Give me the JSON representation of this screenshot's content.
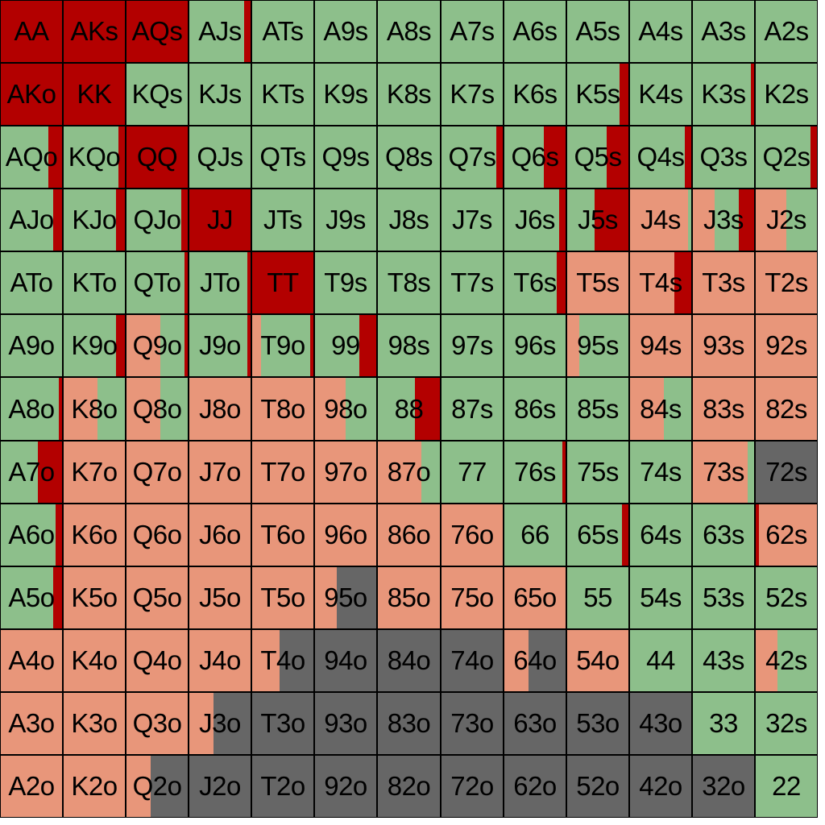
{
  "chart_data": {
    "type": "heatmap",
    "colors": {
      "raise": "#b30000",
      "call": "#8dbf8b",
      "fold": "#e8967a",
      "unused": "#666666"
    },
    "rows": [
      [
        "AA",
        "AKs",
        "AQs",
        "AJs",
        "ATs",
        "A9s",
        "A8s",
        "A7s",
        "A6s",
        "A5s",
        "A4s",
        "A3s",
        "A2s"
      ],
      [
        "AKo",
        "KK",
        "KQs",
        "KJs",
        "KTs",
        "K9s",
        "K8s",
        "K7s",
        "K6s",
        "K5s",
        "K4s",
        "K3s",
        "K2s"
      ],
      [
        "AQo",
        "KQo",
        "QQ",
        "QJs",
        "QTs",
        "Q9s",
        "Q8s",
        "Q7s",
        "Q6s",
        "Q5s",
        "Q4s",
        "Q3s",
        "Q2s"
      ],
      [
        "AJo",
        "KJo",
        "QJo",
        "JJ",
        "JTs",
        "J9s",
        "J8s",
        "J7s",
        "J6s",
        "J5s",
        "J4s",
        "J3s",
        "J2s"
      ],
      [
        "ATo",
        "KTo",
        "QTo",
        "JTo",
        "TT",
        "T9s",
        "T8s",
        "T7s",
        "T6s",
        "T5s",
        "T4s",
        "T3s",
        "T2s"
      ],
      [
        "A9o",
        "K9o",
        "Q9o",
        "J9o",
        "T9o",
        "99",
        "98s",
        "97s",
        "96s",
        "95s",
        "94s",
        "93s",
        "92s"
      ],
      [
        "A8o",
        "K8o",
        "Q8o",
        "J8o",
        "T8o",
        "98o",
        "88",
        "87s",
        "86s",
        "85s",
        "84s",
        "83s",
        "82s"
      ],
      [
        "A7o",
        "K7o",
        "Q7o",
        "J7o",
        "T7o",
        "97o",
        "87o",
        "77",
        "76s",
        "75s",
        "74s",
        "73s",
        "72s"
      ],
      [
        "A6o",
        "K6o",
        "Q6o",
        "J6o",
        "T6o",
        "96o",
        "86o",
        "76o",
        "66",
        "65s",
        "64s",
        "63s",
        "62s"
      ],
      [
        "A5o",
        "K5o",
        "Q5o",
        "J5o",
        "T5o",
        "95o",
        "85o",
        "75o",
        "65o",
        "55",
        "54s",
        "53s",
        "52s"
      ],
      [
        "A4o",
        "K4o",
        "Q4o",
        "J4o",
        "T4o",
        "94o",
        "84o",
        "74o",
        "64o",
        "54o",
        "44",
        "43s",
        "42s"
      ],
      [
        "A3o",
        "K3o",
        "Q3o",
        "J3o",
        "T3o",
        "93o",
        "83o",
        "73o",
        "63o",
        "53o",
        "43o",
        "33",
        "32s"
      ],
      [
        "A2o",
        "K2o",
        "Q2o",
        "J2o",
        "T2o",
        "92o",
        "82o",
        "72o",
        "62o",
        "52o",
        "42o",
        "32o",
        "22"
      ]
    ],
    "strategy": [
      [
        [
          [
            "raise",
            1
          ]
        ],
        [
          [
            "raise",
            1
          ]
        ],
        [
          [
            "raise",
            1
          ]
        ],
        [
          [
            "call",
            0.9
          ],
          [
            "raise",
            0.1
          ]
        ],
        [
          [
            "call",
            1
          ]
        ],
        [
          [
            "call",
            1
          ]
        ],
        [
          [
            "call",
            1
          ]
        ],
        [
          [
            "call",
            1
          ]
        ],
        [
          [
            "call",
            1
          ]
        ],
        [
          [
            "call",
            1
          ]
        ],
        [
          [
            "call",
            1
          ]
        ],
        [
          [
            "call",
            1
          ]
        ],
        [
          [
            "call",
            1
          ]
        ]
      ],
      [
        [
          [
            "raise",
            1
          ]
        ],
        [
          [
            "raise",
            1
          ]
        ],
        [
          [
            "call",
            1
          ]
        ],
        [
          [
            "call",
            1
          ]
        ],
        [
          [
            "call",
            1
          ]
        ],
        [
          [
            "call",
            1
          ]
        ],
        [
          [
            "call",
            1
          ]
        ],
        [
          [
            "call",
            1
          ]
        ],
        [
          [
            "call",
            1
          ]
        ],
        [
          [
            "call",
            0.86
          ],
          [
            "raise",
            0.14
          ]
        ],
        [
          [
            "call",
            1
          ]
        ],
        [
          [
            "call",
            0.95
          ],
          [
            "raise",
            0.05
          ]
        ],
        [
          [
            "call",
            1
          ]
        ]
      ],
      [
        [
          [
            "call",
            0.77
          ],
          [
            "raise",
            0.23
          ]
        ],
        [
          [
            "call",
            0.9
          ],
          [
            "raise",
            0.1
          ]
        ],
        [
          [
            "raise",
            1
          ]
        ],
        [
          [
            "call",
            1
          ]
        ],
        [
          [
            "call",
            1
          ]
        ],
        [
          [
            "call",
            1
          ]
        ],
        [
          [
            "call",
            1
          ]
        ],
        [
          [
            "call",
            0.9
          ],
          [
            "raise",
            0.1
          ]
        ],
        [
          [
            "call",
            0.65
          ],
          [
            "raise",
            0.35
          ]
        ],
        [
          [
            "call",
            0.65
          ],
          [
            "raise",
            0.35
          ]
        ],
        [
          [
            "call",
            0.9
          ],
          [
            "raise",
            0.1
          ]
        ],
        [
          [
            "call",
            1
          ]
        ],
        [
          [
            "call",
            0.9
          ],
          [
            "raise",
            0.1
          ]
        ]
      ],
      [
        [
          [
            "call",
            0.86
          ],
          [
            "raise",
            0.14
          ]
        ],
        [
          [
            "call",
            0.86
          ],
          [
            "raise",
            0.14
          ]
        ],
        [
          [
            "call",
            0.9
          ],
          [
            "raise",
            0.1
          ]
        ],
        [
          [
            "raise",
            1
          ]
        ],
        [
          [
            "call",
            1
          ]
        ],
        [
          [
            "call",
            1
          ]
        ],
        [
          [
            "call",
            1
          ]
        ],
        [
          [
            "call",
            1
          ]
        ],
        [
          [
            "call",
            0.9
          ],
          [
            "raise",
            0.1
          ]
        ],
        [
          [
            "call",
            0.45
          ],
          [
            "raise",
            0.55
          ]
        ],
        [
          [
            "fold",
            0.95
          ],
          [
            "call",
            0.05
          ]
        ],
        [
          [
            "fold",
            0.35
          ],
          [
            "call",
            0.4
          ],
          [
            "raise",
            0.25
          ]
        ],
        [
          [
            "fold",
            0.5
          ],
          [
            "call",
            0.5
          ]
        ]
      ],
      [
        [
          [
            "call",
            1
          ]
        ],
        [
          [
            "call",
            1
          ]
        ],
        [
          [
            "call",
            0.95
          ],
          [
            "raise",
            0.05
          ]
        ],
        [
          [
            "call",
            0.95
          ],
          [
            "raise",
            0.05
          ]
        ],
        [
          [
            "raise",
            1
          ]
        ],
        [
          [
            "call",
            1
          ]
        ],
        [
          [
            "call",
            1
          ]
        ],
        [
          [
            "call",
            1
          ]
        ],
        [
          [
            "call",
            0.86
          ],
          [
            "raise",
            0.14
          ]
        ],
        [
          [
            "fold",
            1
          ]
        ],
        [
          [
            "fold",
            0.72
          ],
          [
            "raise",
            0.28
          ]
        ],
        [
          [
            "fold",
            1
          ]
        ],
        [
          [
            "fold",
            1
          ]
        ]
      ],
      [
        [
          [
            "call",
            1
          ]
        ],
        [
          [
            "call",
            0.86
          ],
          [
            "raise",
            0.14
          ]
        ],
        [
          [
            "fold",
            0.55
          ],
          [
            "call",
            0.4
          ],
          [
            "raise",
            0.05
          ]
        ],
        [
          [
            "call",
            0.95
          ],
          [
            "raise",
            0.05
          ]
        ],
        [
          [
            "fold",
            0.15
          ],
          [
            "call",
            0.8
          ],
          [
            "raise",
            0.05
          ]
        ],
        [
          [
            "call",
            0.72
          ],
          [
            "raise",
            0.28
          ]
        ],
        [
          [
            "call",
            1
          ]
        ],
        [
          [
            "call",
            1
          ]
        ],
        [
          [
            "call",
            1
          ]
        ],
        [
          [
            "fold",
            0.2
          ],
          [
            "call",
            0.8
          ]
        ],
        [
          [
            "fold",
            1
          ]
        ],
        [
          [
            "fold",
            1
          ]
        ],
        [
          [
            "fold",
            1
          ]
        ]
      ],
      [
        [
          [
            "call",
            0.95
          ],
          [
            "raise",
            0.05
          ]
        ],
        [
          [
            "fold",
            0.55
          ],
          [
            "call",
            0.45
          ]
        ],
        [
          [
            "fold",
            0.55
          ],
          [
            "call",
            0.45
          ]
        ],
        [
          [
            "fold",
            1
          ]
        ],
        [
          [
            "fold",
            1
          ]
        ],
        [
          [
            "fold",
            0.5
          ],
          [
            "call",
            0.5
          ]
        ],
        [
          [
            "call",
            0.6
          ],
          [
            "raise",
            0.4
          ]
        ],
        [
          [
            "call",
            1
          ]
        ],
        [
          [
            "call",
            1
          ]
        ],
        [
          [
            "call",
            1
          ]
        ],
        [
          [
            "fold",
            0.55
          ],
          [
            "call",
            0.45
          ]
        ],
        [
          [
            "fold",
            1
          ]
        ],
        [
          [
            "fold",
            1
          ]
        ]
      ],
      [
        [
          [
            "call",
            0.6
          ],
          [
            "raise",
            0.4
          ]
        ],
        [
          [
            "fold",
            1
          ]
        ],
        [
          [
            "fold",
            1
          ]
        ],
        [
          [
            "fold",
            1
          ]
        ],
        [
          [
            "fold",
            1
          ]
        ],
        [
          [
            "fold",
            1
          ]
        ],
        [
          [
            "fold",
            0.7
          ],
          [
            "call",
            0.3
          ]
        ],
        [
          [
            "call",
            1
          ]
        ],
        [
          [
            "call",
            0.95
          ],
          [
            "raise",
            0.05
          ]
        ],
        [
          [
            "call",
            1
          ]
        ],
        [
          [
            "call",
            1
          ]
        ],
        [
          [
            "fold",
            0.9
          ],
          [
            "call",
            0.1
          ]
        ],
        [
          [
            "unused",
            1
          ]
        ]
      ],
      [
        [
          [
            "call",
            0.9
          ],
          [
            "raise",
            0.1
          ]
        ],
        [
          [
            "fold",
            1
          ]
        ],
        [
          [
            "fold",
            1
          ]
        ],
        [
          [
            "fold",
            1
          ]
        ],
        [
          [
            "fold",
            1
          ]
        ],
        [
          [
            "fold",
            1
          ]
        ],
        [
          [
            "fold",
            1
          ]
        ],
        [
          [
            "fold",
            1
          ]
        ],
        [
          [
            "call",
            1
          ]
        ],
        [
          [
            "call",
            0.9
          ],
          [
            "raise",
            0.1
          ]
        ],
        [
          [
            "call",
            1
          ]
        ],
        [
          [
            "call",
            1
          ]
        ],
        [
          [
            "raise",
            0.05
          ],
          [
            "fold",
            0.95
          ]
        ]
      ],
      [
        [
          [
            "call",
            0.85
          ],
          [
            "raise",
            0.15
          ]
        ],
        [
          [
            "fold",
            1
          ]
        ],
        [
          [
            "fold",
            1
          ]
        ],
        [
          [
            "fold",
            1
          ]
        ],
        [
          [
            "fold",
            1
          ]
        ],
        [
          [
            "fold",
            0.35
          ],
          [
            "unused",
            0.65
          ]
        ],
        [
          [
            "fold",
            1
          ]
        ],
        [
          [
            "fold",
            1
          ]
        ],
        [
          [
            "fold",
            1
          ]
        ],
        [
          [
            "call",
            1
          ]
        ],
        [
          [
            "call",
            1
          ]
        ],
        [
          [
            "call",
            1
          ]
        ],
        [
          [
            "call",
            1
          ]
        ]
      ],
      [
        [
          [
            "fold",
            1
          ]
        ],
        [
          [
            "fold",
            1
          ]
        ],
        [
          [
            "fold",
            1
          ]
        ],
        [
          [
            "fold",
            1
          ]
        ],
        [
          [
            "fold",
            0.45
          ],
          [
            "unused",
            0.55
          ]
        ],
        [
          [
            "unused",
            1
          ]
        ],
        [
          [
            "unused",
            1
          ]
        ],
        [
          [
            "unused",
            1
          ]
        ],
        [
          [
            "fold",
            0.4
          ],
          [
            "unused",
            0.6
          ]
        ],
        [
          [
            "fold",
            1
          ]
        ],
        [
          [
            "call",
            1
          ]
        ],
        [
          [
            "call",
            1
          ]
        ],
        [
          [
            "fold",
            0.35
          ],
          [
            "call",
            0.65
          ]
        ]
      ],
      [
        [
          [
            "fold",
            1
          ]
        ],
        [
          [
            "fold",
            1
          ]
        ],
        [
          [
            "fold",
            1
          ]
        ],
        [
          [
            "fold",
            0.4
          ],
          [
            "unused",
            0.6
          ]
        ],
        [
          [
            "unused",
            1
          ]
        ],
        [
          [
            "unused",
            1
          ]
        ],
        [
          [
            "unused",
            1
          ]
        ],
        [
          [
            "unused",
            1
          ]
        ],
        [
          [
            "unused",
            1
          ]
        ],
        [
          [
            "unused",
            1
          ]
        ],
        [
          [
            "unused",
            1
          ]
        ],
        [
          [
            "call",
            1
          ]
        ],
        [
          [
            "call",
            1
          ]
        ]
      ],
      [
        [
          [
            "fold",
            1
          ]
        ],
        [
          [
            "fold",
            1
          ]
        ],
        [
          [
            "fold",
            0.4
          ],
          [
            "unused",
            0.6
          ]
        ],
        [
          [
            "unused",
            1
          ]
        ],
        [
          [
            "unused",
            1
          ]
        ],
        [
          [
            "unused",
            1
          ]
        ],
        [
          [
            "unused",
            1
          ]
        ],
        [
          [
            "unused",
            1
          ]
        ],
        [
          [
            "unused",
            1
          ]
        ],
        [
          [
            "unused",
            1
          ]
        ],
        [
          [
            "unused",
            1
          ]
        ],
        [
          [
            "unused",
            1
          ]
        ],
        [
          [
            "call",
            1
          ]
        ]
      ]
    ]
  }
}
